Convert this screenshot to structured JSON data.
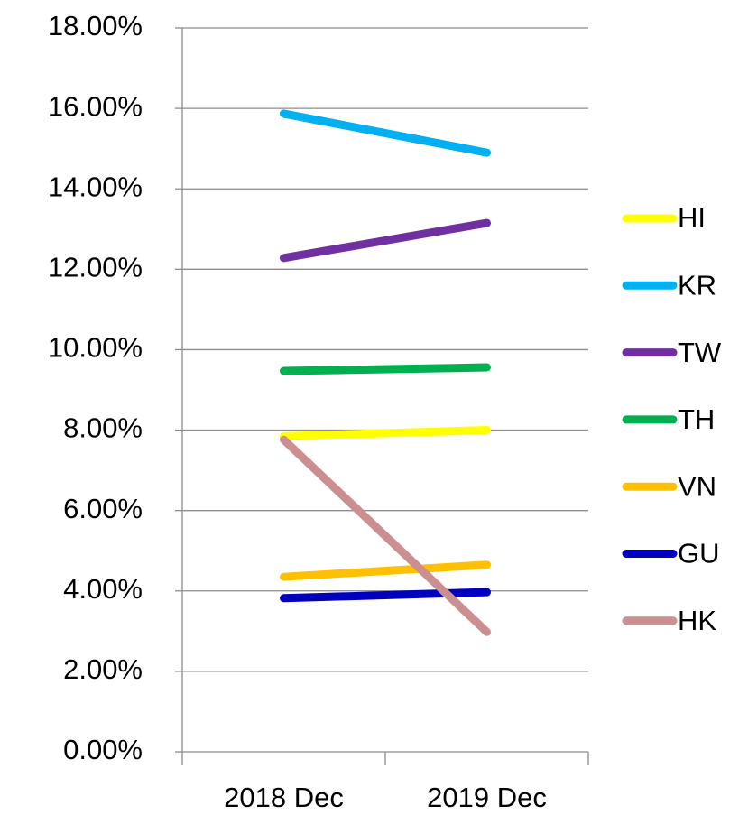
{
  "chart_data": {
    "type": "line",
    "categories": [
      "2018 Dec",
      "2019 Dec"
    ],
    "series": [
      {
        "name": "HI",
        "color": "#ffff00",
        "values": [
          7.85,
          8.0
        ]
      },
      {
        "name": "KR",
        "color": "#00b0f0",
        "values": [
          15.87,
          14.9
        ]
      },
      {
        "name": "TW",
        "color": "#7030a0",
        "values": [
          12.28,
          13.15
        ]
      },
      {
        "name": "TH",
        "color": "#00b050",
        "values": [
          9.47,
          9.56
        ]
      },
      {
        "name": "VN",
        "color": "#ffc000",
        "values": [
          4.35,
          4.65
        ]
      },
      {
        "name": "GU",
        "color": "#0000c0",
        "values": [
          3.82,
          3.97
        ]
      },
      {
        "name": "HK",
        "color": "#cc8f8f",
        "values": [
          7.76,
          2.98
        ]
      }
    ],
    "ylim": [
      0,
      18
    ],
    "yticks": [
      {
        "value": 0,
        "label": "0.00%"
      },
      {
        "value": 2,
        "label": "2.00%"
      },
      {
        "value": 4,
        "label": "4.00%"
      },
      {
        "value": 6,
        "label": "6.00%"
      },
      {
        "value": 8,
        "label": "8.00%"
      },
      {
        "value": 10,
        "label": "10.00%"
      },
      {
        "value": 12,
        "label": "12.00%"
      },
      {
        "value": 14,
        "label": "14.00%"
      },
      {
        "value": 16,
        "label": "16.00%"
      },
      {
        "value": 18,
        "label": "18.00%"
      }
    ],
    "grid": true,
    "legend": "right"
  }
}
